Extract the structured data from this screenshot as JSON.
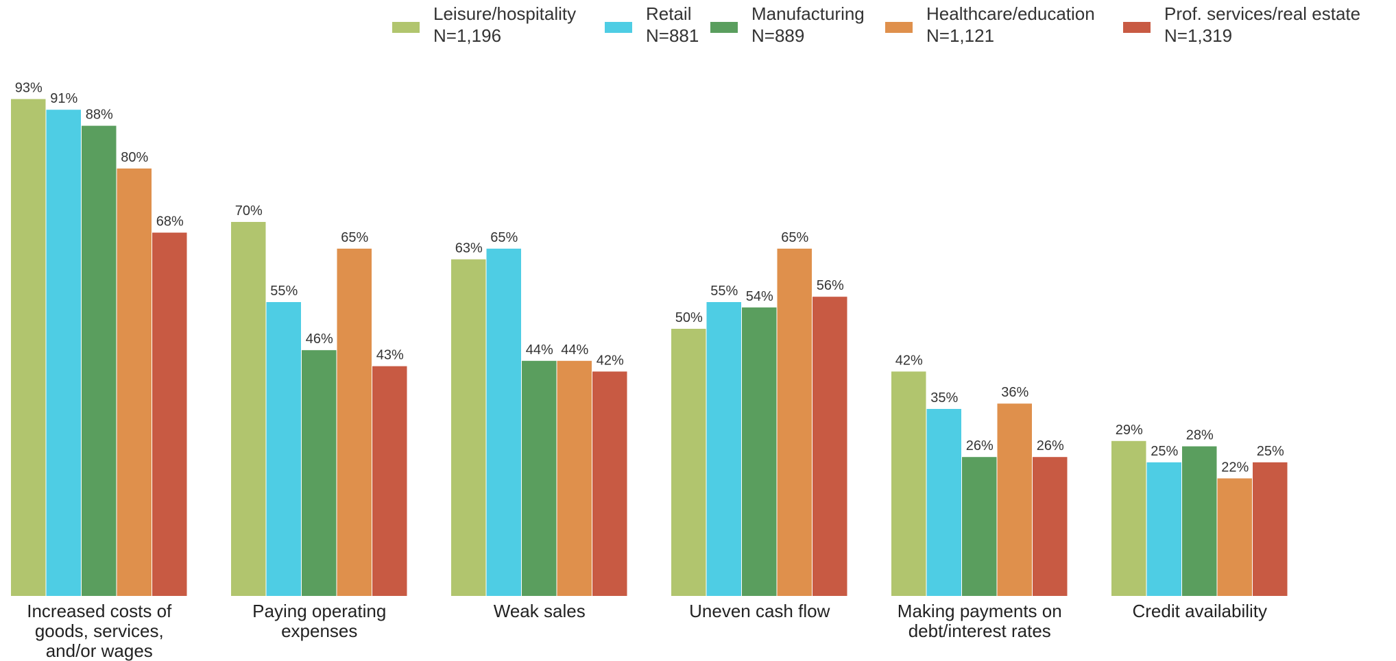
{
  "chart_data": {
    "type": "bar",
    "title": "",
    "xlabel": "",
    "ylabel": "",
    "ylim": [
      0,
      100
    ],
    "grid": false,
    "legend_position": "top-right",
    "value_suffix": "%",
    "categories": [
      [
        "Increased costs of",
        "goods, services,",
        "and/or wages"
      ],
      [
        "Paying operating",
        "expenses"
      ],
      [
        "Weak sales"
      ],
      [
        "Uneven cash flow"
      ],
      [
        "Making payments on",
        "debt/interest rates"
      ],
      [
        "Credit availability"
      ]
    ],
    "series": [
      {
        "name": "Leisure/hospitality",
        "n_label": "N=1,196",
        "color": "#b1c56e",
        "values": [
          93,
          70,
          63,
          50,
          42,
          29
        ]
      },
      {
        "name": "Retail",
        "n_label": "N=881",
        "color": "#4ecde4",
        "values": [
          91,
          55,
          65,
          55,
          35,
          25
        ]
      },
      {
        "name": "Manufacturing",
        "n_label": "N=889",
        "color": "#5a9e5e",
        "values": [
          88,
          46,
          44,
          54,
          26,
          28
        ]
      },
      {
        "name": "Healthcare/education",
        "n_label": "N=1,121",
        "color": "#df904c",
        "values": [
          80,
          65,
          44,
          65,
          36,
          22
        ]
      },
      {
        "name": "Prof. services/real estate",
        "n_label": "N=1,319",
        "color": "#c85a43",
        "values": [
          68,
          43,
          42,
          56,
          26,
          25
        ]
      }
    ]
  }
}
